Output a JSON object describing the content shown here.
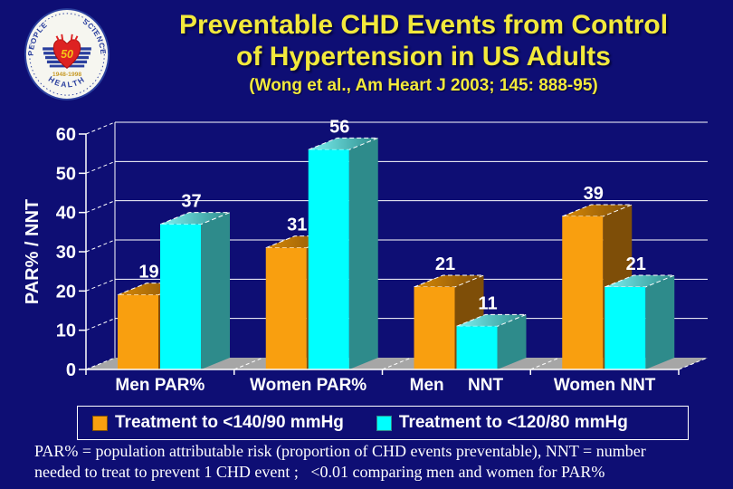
{
  "slide": {
    "background_color": "#0E0E74",
    "title_line1": "Preventable CHD Events from Control",
    "title_line2": "of Hypertension in US Adults",
    "subtitle": "(Wong et al., Am Heart J 2003; 145: 888-95)",
    "title_color": "#F2E93C",
    "footnote": "PAR% = population attributable risk (proportion of CHD events preventable), NNT = number\nneeded to treat to prevent 1 CHD event ;   <0.01 comparing men and women for PAR%"
  },
  "logo": {
    "arc_top_left": "PEOPLE",
    "arc_top_right": "SCIENCE",
    "arc_bottom": "HEALTH",
    "years": "1948-1998",
    "center_number": "50"
  },
  "chart_data": {
    "type": "bar",
    "style": "3d-column",
    "title": "",
    "ylabel": "PAR% / NNT",
    "xlabel": "",
    "ylim": [
      0,
      60
    ],
    "ytick_step": 10,
    "yticks": [
      0,
      10,
      20,
      30,
      40,
      50,
      60
    ],
    "grid": true,
    "gridline_color": "#FFFFFF",
    "floor_color": "#A6A6A6",
    "text_color": "#FFFFFF",
    "legend_position": "bottom",
    "categories": [
      "Men PAR%",
      "Women PAR%",
      "Men     NNT",
      "Women NNT"
    ],
    "series": [
      {
        "name": "Treatment to <140/90 mmHg",
        "color": "#F99F0F",
        "top_color": "#D98A07",
        "side_color": "#7E4E08",
        "values": [
          19,
          31,
          21,
          39
        ]
      },
      {
        "name": "Treatment to <120/80 mmHg",
        "color": "#00FFFF",
        "top_color": "#7DF3F3",
        "side_color": "#2E8B8B",
        "values": [
          37,
          56,
          11,
          21
        ]
      }
    ]
  }
}
